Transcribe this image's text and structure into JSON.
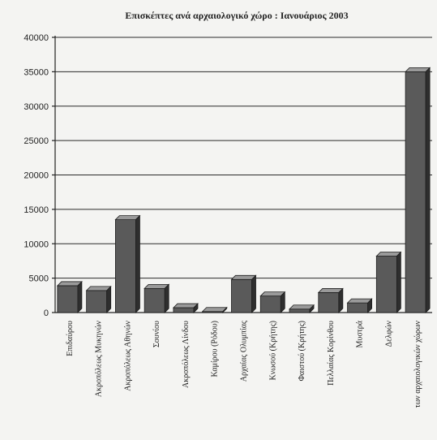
{
  "chart_data": {
    "type": "bar",
    "title": "Επισκέπτες ανά αρχαιολογικό χώρο : Ιανουάριος 2003",
    "xlabel": "",
    "ylabel": "",
    "ylim": [
      0,
      40000
    ],
    "yticks": [
      0,
      5000,
      10000,
      15000,
      20000,
      25000,
      30000,
      35000,
      40000
    ],
    "grid": true,
    "style": "3d",
    "bar_color": "#5a5a5a",
    "categories": [
      "Επιδαύρου",
      "Ακροπόλεως Μυκηνών",
      "Ακροπόλεως Αθηνών",
      "Σουνίου",
      "Ακροπόλεως Λίνδου",
      "Καμίρου (Ρόδου)",
      "Αρχαίας Ολυμπίας",
      "Κνωσού (Κρήτης)",
      "Φαιστού (Κρήτης)",
      "Πελλαίας Κορίνθου",
      "Μυστρά",
      "Δελφών",
      "των αρχαιολογικών χώρων"
    ],
    "values": [
      3900,
      3200,
      13500,
      3500,
      700,
      150,
      4800,
      2400,
      500,
      2900,
      1400,
      8200,
      35000
    ]
  }
}
